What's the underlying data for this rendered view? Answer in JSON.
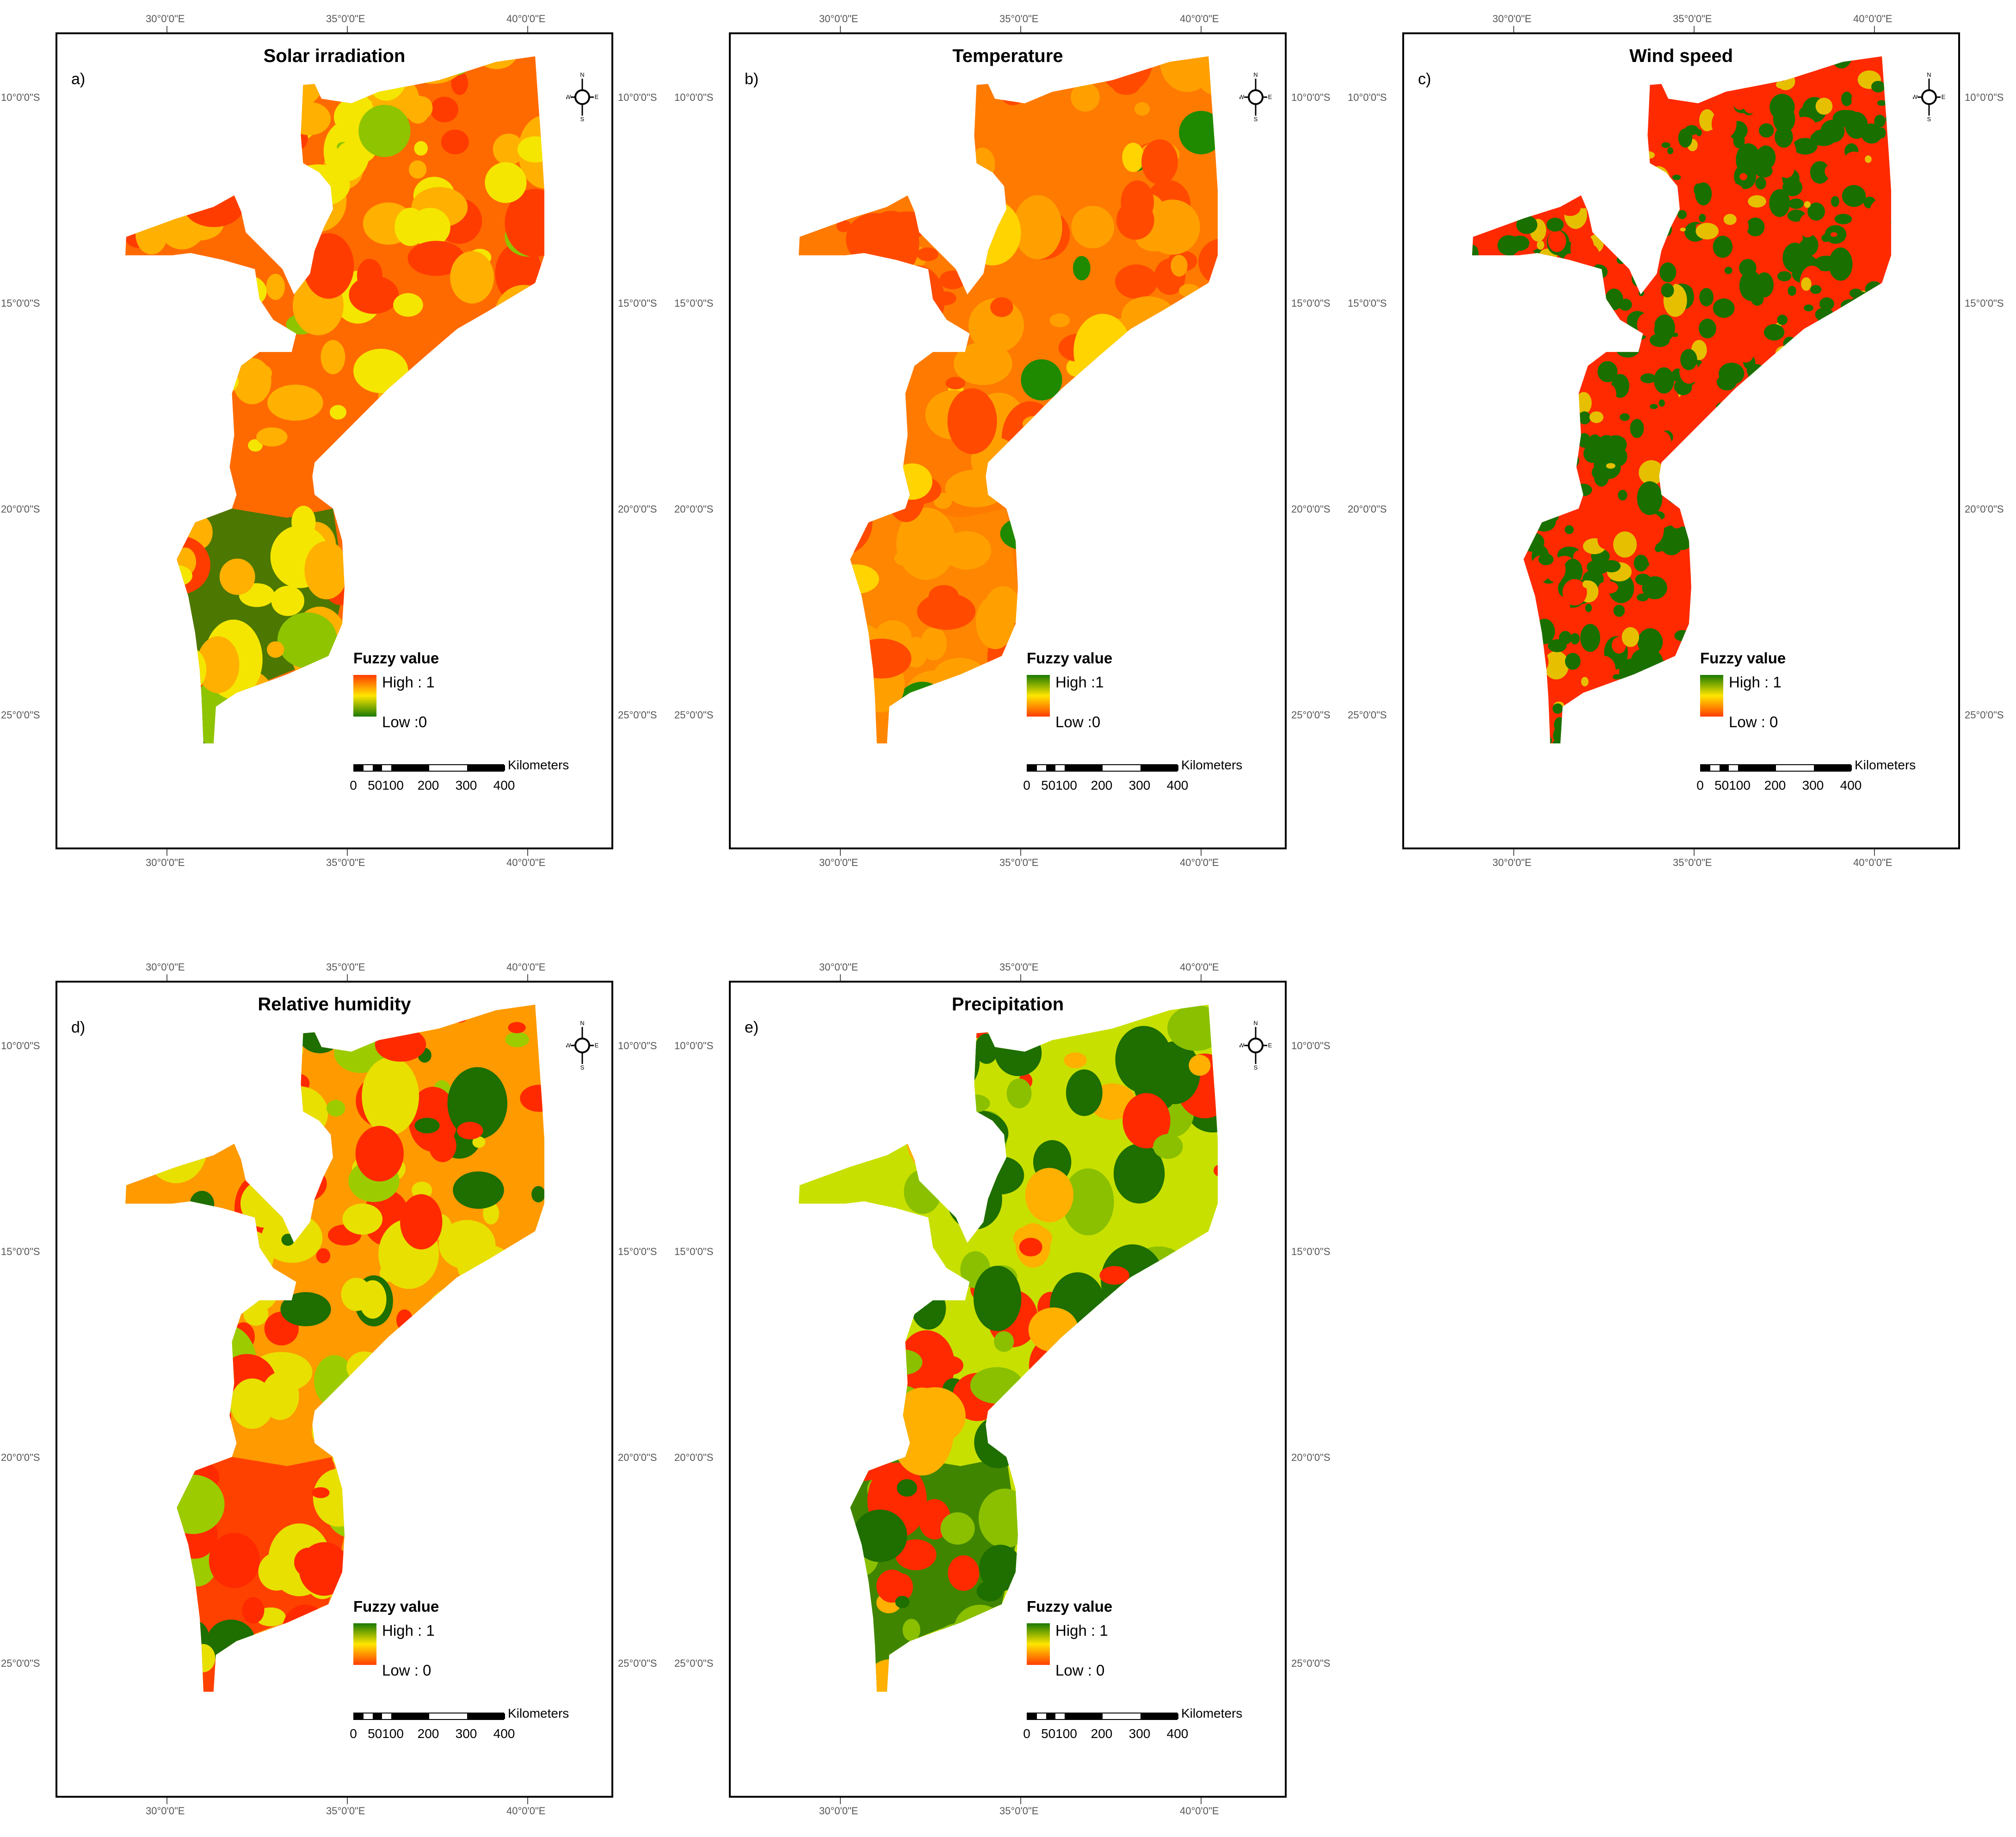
{
  "panels": [
    {
      "letter": "a)",
      "title": "Solar irradiation",
      "legend": {
        "title": "Fuzzy value",
        "high": "High : 1",
        "low": "Low :0",
        "top_color": "#ff3c00",
        "mid_color": "#ffe600",
        "bottom_color": "#1a7a00"
      }
    },
    {
      "letter": "b)",
      "title": "Temperature",
      "legend": {
        "title": "Fuzzy value",
        "high": "High :1",
        "low": "Low :0",
        "top_color": "#1a7a00",
        "mid_color": "#ffe600",
        "bottom_color": "#ff3c00"
      }
    },
    {
      "letter": "c)",
      "title": "Wind speed",
      "legend": {
        "title": "Fuzzy value",
        "high": "High : 1",
        "low": "Low : 0",
        "top_color": "#1a7a00",
        "mid_color": "#ffe600",
        "bottom_color": "#ff3c00"
      }
    },
    {
      "letter": "d)",
      "title": "Relative humidity",
      "legend": {
        "title": "Fuzzy value",
        "high": "High : 1",
        "low": "Low : 0",
        "top_color": "#1a7a00",
        "mid_color": "#ffe600",
        "bottom_color": "#ff3c00"
      }
    },
    {
      "letter": "e)",
      "title": "Precipitation",
      "legend": {
        "title": "Fuzzy value",
        "high": "High : 1",
        "low": "Low : 0",
        "top_color": "#1a7a00",
        "mid_color": "#ffe600",
        "bottom_color": "#ff3c00"
      }
    }
  ],
  "graticule": {
    "lon": [
      "30°0'0\"E",
      "35°0'0\"E",
      "40°0'0\"E"
    ],
    "lat": [
      "10°0'0\"S",
      "15°0'0\"S",
      "20°0'0\"S",
      "25°0'0\"S"
    ]
  },
  "compass": {
    "n": "N",
    "s": "S",
    "e": "E",
    "w": "W"
  },
  "scale": {
    "unit": "Kilometers",
    "labels": [
      "0",
      "50100",
      "200",
      "300",
      "400"
    ]
  }
}
